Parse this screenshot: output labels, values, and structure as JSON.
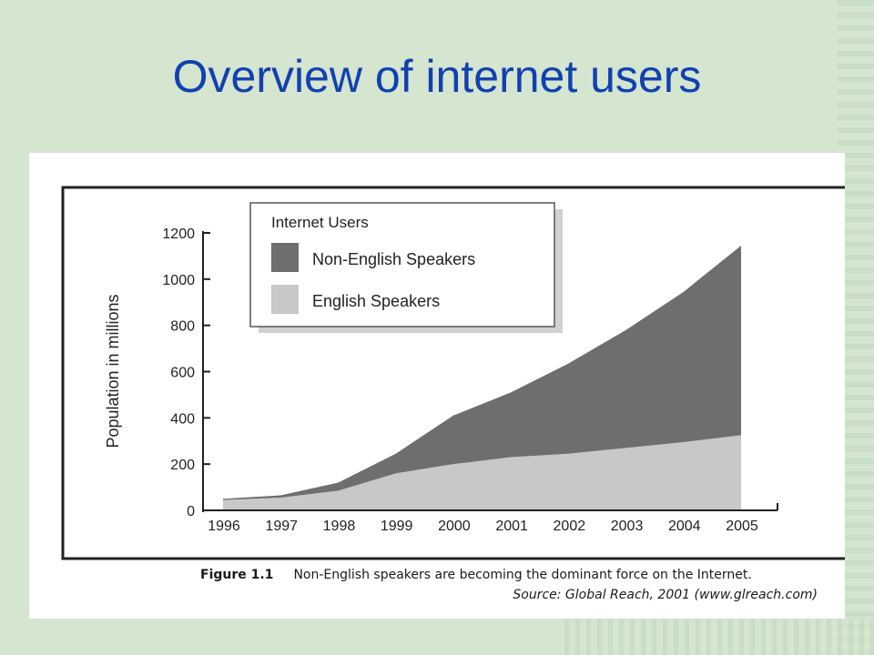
{
  "slide": {
    "title": "Overview of internet users"
  },
  "caption": {
    "figure_label": "Figure 1.1",
    "text": "Non-English speakers are becoming the dominant force on the Internet.",
    "source": "Source: Global Reach, 2001 (www.glreach.com)"
  },
  "chart_data": {
    "type": "area",
    "stacked": true,
    "title": "",
    "xlabel": "",
    "ylabel": "Population in millions",
    "x": [
      "1996",
      "1997",
      "1998",
      "1999",
      "2000",
      "2001",
      "2002",
      "2003",
      "2004",
      "2005"
    ],
    "ylim": [
      0,
      1200
    ],
    "yticks": [
      "0",
      "200",
      "400",
      "600",
      "800",
      "1000",
      "1200"
    ],
    "legend": {
      "title": "Internet Users",
      "placement": "top-left"
    },
    "series": [
      {
        "name": "English Speakers",
        "color": "#c8c8c8",
        "values": [
          45,
          55,
          85,
          160,
          200,
          230,
          245,
          270,
          295,
          325
        ]
      },
      {
        "name": "Non-English Speakers",
        "color": "#6e6e6e",
        "values": [
          5,
          10,
          35,
          85,
          210,
          280,
          390,
          510,
          650,
          820
        ]
      }
    ],
    "grid": false
  }
}
